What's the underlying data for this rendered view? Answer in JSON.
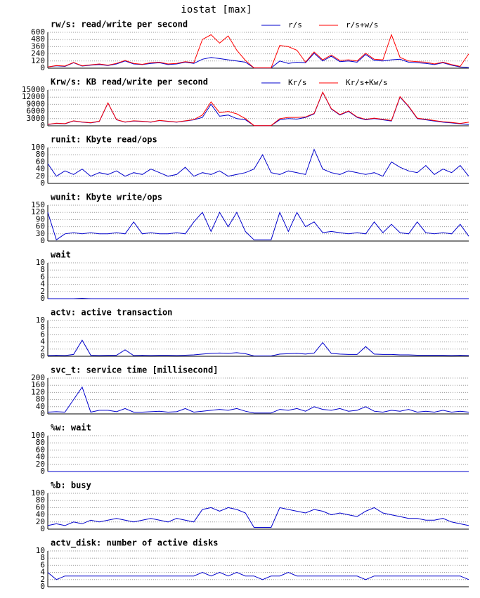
{
  "title": "iostat [max]",
  "chart_data": [
    {
      "type": "line",
      "title": "rw/s: read/write per second",
      "ylim": [
        0,
        600
      ],
      "yticks": [
        0,
        120,
        240,
        360,
        480,
        600
      ],
      "grid": true,
      "series": [
        {
          "name": "r/s",
          "color": "#0000cc",
          "values": [
            20,
            40,
            30,
            90,
            35,
            50,
            60,
            45,
            70,
            120,
            70,
            60,
            80,
            90,
            60,
            70,
            100,
            80,
            150,
            180,
            160,
            140,
            120,
            100,
            5,
            5,
            5,
            120,
            80,
            100,
            90,
            250,
            120,
            200,
            110,
            120,
            100,
            230,
            130,
            120,
            140,
            150,
            100,
            90,
            80,
            60,
            90,
            50,
            20,
            10
          ]
        },
        {
          "name": "r/s+w/s",
          "color": "#ff0000",
          "values": [
            20,
            45,
            35,
            95,
            40,
            55,
            70,
            50,
            80,
            130,
            80,
            65,
            90,
            100,
            70,
            80,
            110,
            90,
            480,
            560,
            420,
            540,
            300,
            130,
            5,
            5,
            5,
            380,
            360,
            300,
            100,
            270,
            140,
            220,
            130,
            140,
            120,
            250,
            150,
            140,
            560,
            180,
            120,
            110,
            100,
            70,
            100,
            60,
            30,
            240
          ]
        }
      ]
    },
    {
      "type": "line",
      "title": "Krw/s: KB read/write per second",
      "ylim": [
        0,
        15000
      ],
      "yticks": [
        0,
        3000,
        6000,
        9000,
        12000,
        15000
      ],
      "grid": true,
      "series": [
        {
          "name": "Kr/s",
          "color": "#0000cc",
          "values": [
            500,
            1000,
            800,
            2000,
            1500,
            1200,
            1800,
            9500,
            2500,
            1500,
            2000,
            1800,
            1500,
            2200,
            1800,
            1500,
            2000,
            2500,
            3500,
            9000,
            4000,
            4500,
            3000,
            2500,
            100,
            100,
            100,
            2500,
            3000,
            2800,
            3500,
            5000,
            14000,
            7000,
            4500,
            6000,
            3500,
            2500,
            3000,
            2500,
            2000,
            12000,
            8000,
            3000,
            2500,
            2000,
            1500,
            1200,
            800,
            500
          ]
        },
        {
          "name": "Kr/s+Kw/s",
          "color": "#ff0000",
          "values": [
            600,
            1100,
            900,
            2100,
            1600,
            1300,
            1900,
            9600,
            2600,
            1600,
            2100,
            1900,
            1600,
            2300,
            1900,
            1600,
            2100,
            2600,
            4500,
            10000,
            5500,
            6000,
            5000,
            3000,
            100,
            100,
            100,
            3000,
            3500,
            3500,
            3700,
            5200,
            14100,
            7200,
            4700,
            6200,
            3700,
            2700,
            3200,
            2700,
            2200,
            12200,
            8200,
            3200,
            2700,
            2200,
            1700,
            1400,
            1000,
            1500
          ]
        }
      ]
    },
    {
      "type": "line",
      "title": "runit: Kbyte read/ops",
      "ylim": [
        0,
        100
      ],
      "yticks": [
        0,
        20,
        40,
        60,
        80,
        100
      ],
      "grid": true,
      "series": [
        {
          "color": "#0000cc",
          "values": [
            55,
            20,
            35,
            25,
            40,
            20,
            30,
            25,
            35,
            20,
            30,
            25,
            40,
            30,
            20,
            25,
            45,
            20,
            30,
            25,
            35,
            20,
            25,
            30,
            40,
            80,
            30,
            25,
            35,
            30,
            25,
            95,
            40,
            30,
            25,
            35,
            30,
            25,
            30,
            20,
            60,
            45,
            35,
            30,
            50,
            25,
            40,
            30,
            50,
            20
          ]
        }
      ]
    },
    {
      "type": "line",
      "title": "wunit: Kbyte write/ops",
      "ylim": [
        0,
        150
      ],
      "yticks": [
        0,
        30,
        60,
        90,
        120,
        150
      ],
      "grid": true,
      "series": [
        {
          "color": "#0000cc",
          "values": [
            120,
            5,
            30,
            35,
            30,
            35,
            30,
            30,
            35,
            30,
            80,
            30,
            35,
            30,
            30,
            35,
            30,
            80,
            120,
            40,
            120,
            60,
            120,
            40,
            5,
            5,
            5,
            120,
            40,
            120,
            60,
            80,
            35,
            40,
            35,
            30,
            35,
            30,
            80,
            35,
            70,
            35,
            30,
            80,
            35,
            30,
            35,
            30,
            70,
            20
          ]
        }
      ]
    },
    {
      "type": "line",
      "title": "wait",
      "ylim": [
        0,
        10
      ],
      "yticks": [
        0,
        2,
        4,
        6,
        8,
        10
      ],
      "grid": true,
      "series": [
        {
          "color": "#0000cc",
          "values": [
            0,
            0,
            0,
            0,
            0.1,
            0,
            0,
            0,
            0,
            0,
            0,
            0,
            0,
            0,
            0,
            0,
            0,
            0,
            0,
            0,
            0,
            0,
            0,
            0,
            0,
            0,
            0,
            0,
            0,
            0,
            0,
            0,
            0,
            0,
            0,
            0,
            0,
            0,
            0,
            0,
            0,
            0,
            0,
            0,
            0,
            0,
            0,
            0,
            0,
            0
          ]
        }
      ]
    },
    {
      "type": "line",
      "title": "actv: active transaction",
      "ylim": [
        0,
        10
      ],
      "yticks": [
        0,
        2,
        4,
        6,
        8,
        10
      ],
      "grid": true,
      "series": [
        {
          "color": "#0000cc",
          "values": [
            0.2,
            0.3,
            0.2,
            0.5,
            4.5,
            0.3,
            0.2,
            0.3,
            0.3,
            1.8,
            0.2,
            0.3,
            0.2,
            0.3,
            0.3,
            0.2,
            0.3,
            0.4,
            0.6,
            0.8,
            0.9,
            0.8,
            1,
            0.7,
            0.1,
            0.1,
            0.1,
            0.6,
            0.7,
            0.8,
            0.6,
            0.9,
            3.8,
            0.8,
            0.6,
            0.5,
            0.5,
            2.7,
            0.6,
            0.5,
            0.5,
            0.4,
            0.4,
            0.3,
            0.3,
            0.3,
            0.3,
            0.2,
            0.3,
            0.2
          ]
        }
      ]
    },
    {
      "type": "line",
      "title": "svc_t: service time [millisecond]",
      "ylim": [
        0,
        200
      ],
      "yticks": [
        0,
        40,
        80,
        120,
        160,
        200
      ],
      "grid": true,
      "series": [
        {
          "color": "#0000cc",
          "values": [
            10,
            12,
            10,
            80,
            150,
            10,
            20,
            20,
            12,
            30,
            10,
            10,
            12,
            15,
            10,
            12,
            30,
            10,
            15,
            20,
            25,
            20,
            30,
            15,
            5,
            5,
            5,
            25,
            20,
            30,
            15,
            40,
            25,
            20,
            30,
            15,
            20,
            40,
            15,
            10,
            20,
            15,
            25,
            10,
            15,
            10,
            20,
            10,
            15,
            10
          ]
        }
      ]
    },
    {
      "type": "line",
      "title": "%w: wait",
      "ylim": [
        0,
        100
      ],
      "yticks": [
        0,
        20,
        40,
        60,
        80,
        100
      ],
      "grid": true,
      "series": [
        {
          "color": "#0000cc",
          "values": [
            0,
            0,
            0,
            0,
            0,
            0,
            0,
            0,
            0,
            0,
            0,
            0,
            0,
            0,
            0,
            0,
            0,
            0,
            0,
            0,
            0,
            0,
            0,
            0,
            0,
            0,
            0,
            0,
            0,
            0,
            0,
            0,
            0,
            0,
            0,
            0,
            0,
            0,
            0,
            0,
            0,
            0,
            0,
            0,
            0,
            0,
            0,
            0,
            0,
            0
          ]
        }
      ]
    },
    {
      "type": "line",
      "title": "%b: busy",
      "ylim": [
        0,
        100
      ],
      "yticks": [
        0,
        20,
        40,
        60,
        80,
        100
      ],
      "grid": true,
      "series": [
        {
          "color": "#0000cc",
          "values": [
            10,
            15,
            10,
            20,
            15,
            25,
            20,
            25,
            30,
            25,
            20,
            25,
            30,
            25,
            20,
            30,
            25,
            20,
            55,
            60,
            50,
            60,
            55,
            45,
            5,
            5,
            5,
            60,
            55,
            50,
            45,
            55,
            50,
            40,
            45,
            40,
            35,
            50,
            60,
            45,
            40,
            35,
            30,
            30,
            25,
            25,
            30,
            20,
            15,
            10
          ]
        }
      ]
    },
    {
      "type": "line",
      "title": "actv_disk: number of active disks",
      "ylim": [
        0,
        10
      ],
      "yticks": [
        0,
        2,
        4,
        6,
        8,
        10
      ],
      "grid": true,
      "series": [
        {
          "color": "#0000cc",
          "values": [
            4,
            2,
            3,
            3,
            3,
            3,
            3,
            3,
            3,
            3,
            3,
            3,
            3,
            3,
            3,
            3,
            3,
            3,
            4,
            3,
            4,
            3,
            4,
            3,
            3,
            2,
            3,
            3,
            4,
            3,
            3,
            3,
            3,
            3,
            3,
            3,
            3,
            2,
            3,
            3,
            3,
            3,
            3,
            3,
            3,
            3,
            3,
            3,
            3,
            2
          ]
        }
      ]
    }
  ]
}
